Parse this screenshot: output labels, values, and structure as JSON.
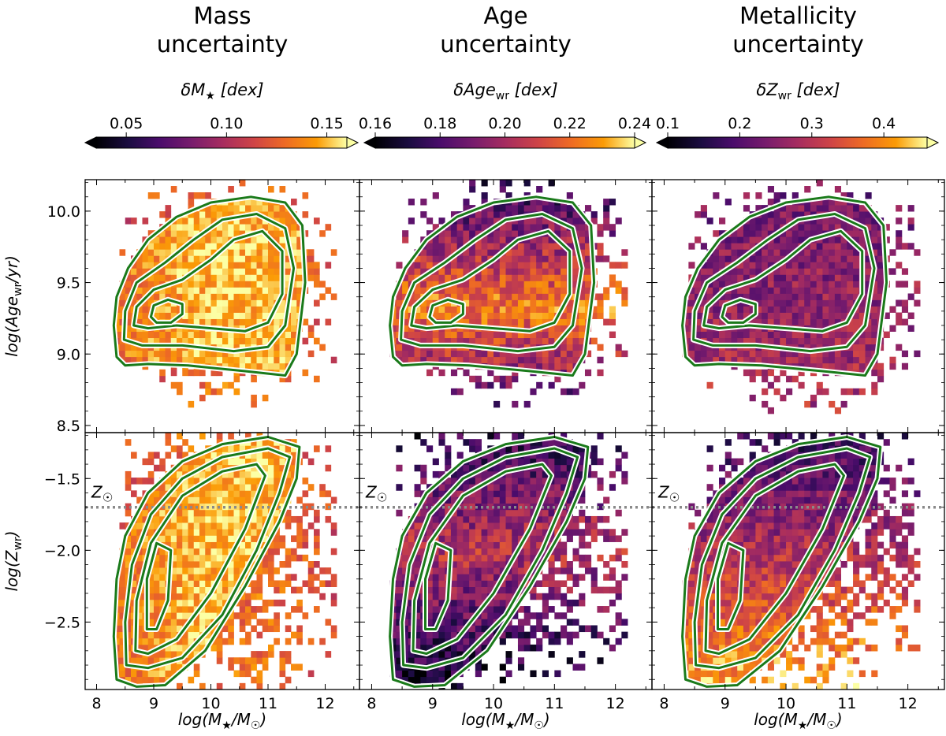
{
  "chart_data": {
    "type": "heatmap",
    "layout": "2 rows x 3 columns of 2D histograms with density contours",
    "columns": [
      {
        "title_line1": "Mass",
        "title_line2": "uncertainty",
        "colorbar": {
          "label": "δM★ [dex]",
          "label_main": "δM",
          "label_sub": "★",
          "label_rest": " [dex]",
          "min": 0.035,
          "max": 0.16,
          "ticks": [
            "0.05",
            "0.10",
            "0.15"
          ],
          "tick_values": [
            0.05,
            0.1,
            0.15
          ],
          "colormap": "inferno-like",
          "extend": "both"
        },
        "color_trend": "high (yellow) across the main population, darker orange at low mass and high metallicity"
      },
      {
        "title_line1": "Age",
        "title_line2": "uncertainty",
        "colorbar": {
          "label": "δAge_wr [dex]",
          "label_main": "δAge",
          "label_sub": "wr",
          "label_rest": " [dex]",
          "min": 0.16,
          "max": 0.24,
          "ticks": [
            "0.16",
            "0.18",
            "0.20",
            "0.22",
            "0.24"
          ],
          "tick_values": [
            0.16,
            0.18,
            0.2,
            0.22,
            0.24
          ],
          "colormap": "inferno-like",
          "extend": "both"
        },
        "color_trend": "high (orange) at intermediate ages, very low (black) at the oldest and youngest edges"
      },
      {
        "title_line1": "Metallicity",
        "title_line2": "uncertainty",
        "colorbar": {
          "label": "δZ_wr [dex]",
          "label_main": "δZ",
          "label_sub": "wr",
          "label_rest": " [dex]",
          "min": 0.1,
          "max": 0.46,
          "ticks": [
            "0.1",
            "0.2",
            "0.3",
            "0.4"
          ],
          "tick_values": [
            0.1,
            0.2,
            0.3,
            0.4
          ],
          "colormap": "inferno-like",
          "extend": "both"
        },
        "color_trend": "low (dark purple) for old metal-rich galaxies, high (orange/yellow) at low metallicity"
      }
    ],
    "x_axis": {
      "label": "log(M★/M☉)",
      "label_main": "log(M",
      "label_star": "★",
      "label_mid": "/M",
      "label_sun": "☉",
      "label_end": ")",
      "range": [
        7.8,
        12.6
      ],
      "ticks": [
        "8",
        "9",
        "10",
        "11",
        "12"
      ],
      "tick_values": [
        8,
        9,
        10,
        11,
        12
      ]
    },
    "rows": [
      {
        "y_label": "log(Age_wr/yr)",
        "y_label_main": "log(Age",
        "y_label_sub": "wr",
        "y_label_end": "/yr)",
        "y_range": [
          8.45,
          10.22
        ],
        "y_ticks": [
          "8.5",
          "9.0",
          "9.5",
          "10.0"
        ],
        "y_tick_values": [
          8.5,
          9.0,
          9.5,
          10.0
        ],
        "contour_peak": {
          "x": 9.2,
          "y": 9.3
        },
        "contours": [
          [
            [
              8.35,
              8.98
            ],
            [
              8.3,
              9.2
            ],
            [
              8.35,
              9.4
            ],
            [
              8.55,
              9.6
            ],
            [
              8.9,
              9.8
            ],
            [
              9.4,
              9.96
            ],
            [
              10.0,
              10.06
            ],
            [
              10.7,
              10.1
            ],
            [
              11.3,
              10.06
            ],
            [
              11.6,
              9.9
            ],
            [
              11.65,
              9.5
            ],
            [
              11.5,
              9.0
            ],
            [
              11.3,
              8.85
            ],
            [
              10.6,
              8.88
            ],
            [
              9.6,
              8.92
            ],
            [
              8.9,
              8.93
            ],
            [
              8.5,
              8.92
            ]
          ],
          [
            [
              8.48,
              9.1
            ],
            [
              8.5,
              9.3
            ],
            [
              8.7,
              9.5
            ],
            [
              9.2,
              9.64
            ],
            [
              9.7,
              9.8
            ],
            [
              10.2,
              9.94
            ],
            [
              10.8,
              9.98
            ],
            [
              11.3,
              9.88
            ],
            [
              11.45,
              9.6
            ],
            [
              11.3,
              9.2
            ],
            [
              11.0,
              9.05
            ],
            [
              10.4,
              9.02
            ],
            [
              9.5,
              9.06
            ],
            [
              8.8,
              9.06
            ]
          ],
          [
            [
              8.65,
              9.2
            ],
            [
              8.7,
              9.33
            ],
            [
              9.0,
              9.45
            ],
            [
              9.5,
              9.52
            ],
            [
              10.0,
              9.66
            ],
            [
              10.4,
              9.8
            ],
            [
              10.9,
              9.86
            ],
            [
              11.25,
              9.72
            ],
            [
              11.25,
              9.42
            ],
            [
              11.0,
              9.22
            ],
            [
              10.6,
              9.16
            ],
            [
              10.0,
              9.18
            ],
            [
              9.4,
              9.2
            ],
            [
              8.9,
              9.18
            ]
          ],
          [
            [
              8.95,
              9.26
            ],
            [
              9.0,
              9.34
            ],
            [
              9.25,
              9.38
            ],
            [
              9.5,
              9.35
            ],
            [
              9.5,
              9.28
            ],
            [
              9.3,
              9.22
            ],
            [
              9.05,
              9.22
            ]
          ]
        ]
      },
      {
        "y_label": "log(Z_wr)",
        "y_label_main": "log(Z",
        "y_label_sub": "wr",
        "y_label_end": ")",
        "y_range": [
          -2.97,
          -1.18
        ],
        "y_ticks": [
          "-2.5",
          "-2.0",
          "-1.5"
        ],
        "y_tick_values": [
          -2.5,
          -2.0,
          -1.5
        ],
        "reference_line": {
          "y": -1.7,
          "label": "Z☉",
          "label_main": "Z",
          "label_sun": "☉",
          "style": "dotted grey"
        },
        "contour_peak": {
          "x": 9.2,
          "y": -2.2
        },
        "contours": [
          [
            [
              8.35,
              -2.9
            ],
            [
              8.3,
              -2.6
            ],
            [
              8.35,
              -2.2
            ],
            [
              8.5,
              -1.9
            ],
            [
              8.9,
              -1.6
            ],
            [
              9.5,
              -1.38
            ],
            [
              10.2,
              -1.26
            ],
            [
              11.0,
              -1.21
            ],
            [
              11.55,
              -1.28
            ],
            [
              11.5,
              -1.5
            ],
            [
              11.2,
              -1.8
            ],
            [
              10.6,
              -2.25
            ],
            [
              9.9,
              -2.7
            ],
            [
              9.2,
              -2.94
            ],
            [
              8.7,
              -2.95
            ]
          ],
          [
            [
              8.52,
              -2.8
            ],
            [
              8.5,
              -2.5
            ],
            [
              8.62,
              -2.1
            ],
            [
              8.95,
              -1.75
            ],
            [
              9.5,
              -1.5
            ],
            [
              10.2,
              -1.35
            ],
            [
              11.0,
              -1.29
            ],
            [
              11.38,
              -1.35
            ],
            [
              11.2,
              -1.6
            ],
            [
              10.8,
              -2.0
            ],
            [
              10.2,
              -2.45
            ],
            [
              9.5,
              -2.75
            ],
            [
              8.9,
              -2.82
            ]
          ],
          [
            [
              8.68,
              -2.7
            ],
            [
              8.7,
              -2.35
            ],
            [
              8.95,
              -1.95
            ],
            [
              9.5,
              -1.62
            ],
            [
              10.2,
              -1.45
            ],
            [
              10.8,
              -1.4
            ],
            [
              10.95,
              -1.48
            ],
            [
              10.6,
              -1.85
            ],
            [
              10.0,
              -2.3
            ],
            [
              9.4,
              -2.62
            ],
            [
              8.9,
              -2.72
            ]
          ],
          [
            [
              8.88,
              -2.55
            ],
            [
              8.88,
              -2.2
            ],
            [
              9.05,
              -1.95
            ],
            [
              9.3,
              -2.0
            ],
            [
              9.25,
              -2.35
            ],
            [
              9.05,
              -2.55
            ]
          ]
        ]
      }
    ]
  }
}
